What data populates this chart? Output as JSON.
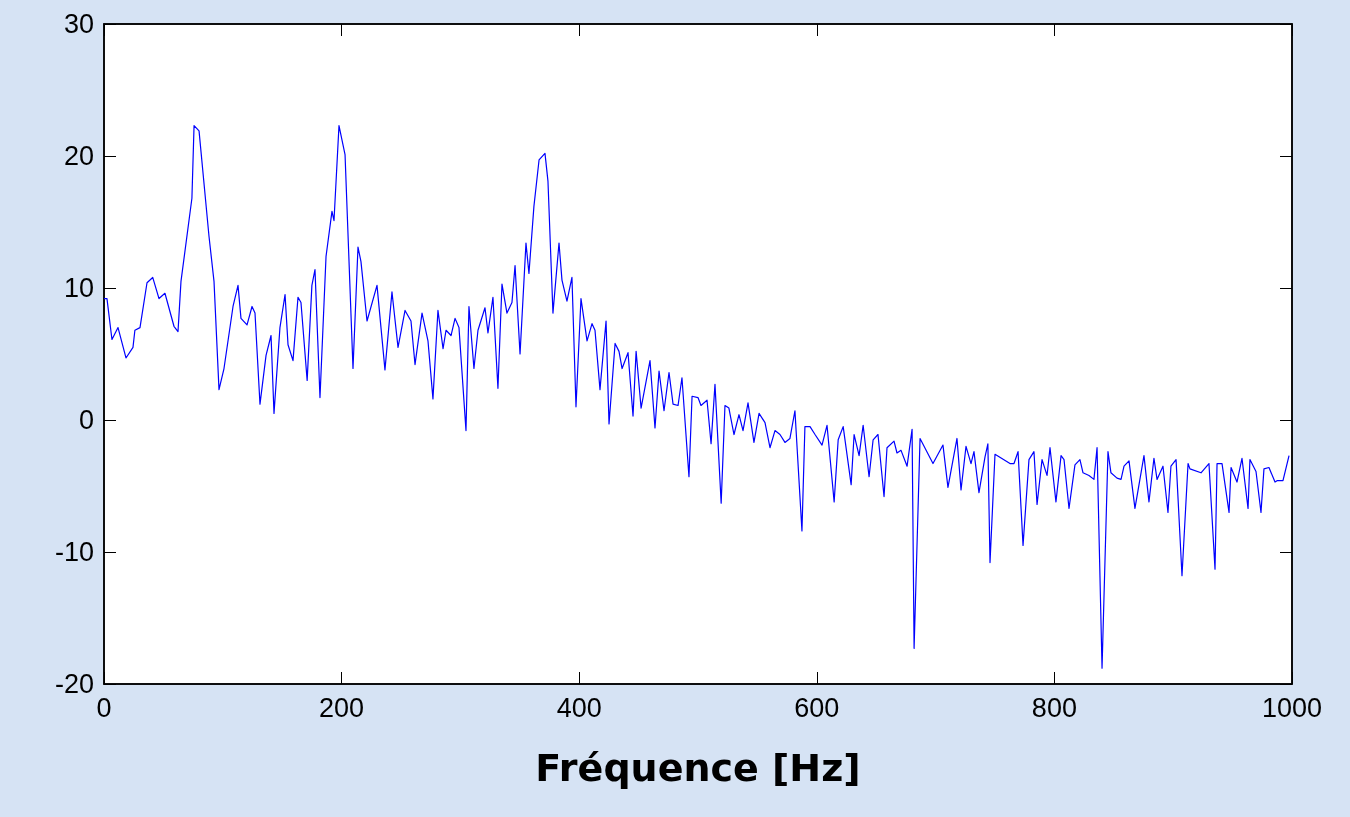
{
  "chart_data": {
    "type": "line",
    "xlabel": "Fréquence [Hz]",
    "xlim": [
      0,
      1000
    ],
    "ylim": [
      -20,
      30
    ],
    "xticks": [
      0,
      200,
      400,
      600,
      800,
      1000
    ],
    "yticks": [
      -20,
      -10,
      0,
      10,
      20,
      30
    ],
    "grid": false,
    "marker": "none",
    "line_style": "solid",
    "series": [
      {
        "color": "#0000ff",
        "x": [
          0,
          2.5,
          6.7,
          11.8,
          18.5,
          24.4,
          26,
          30.3,
          36.2,
          41,
          46.3,
          51.3,
          58.9,
          62.3,
          64.8,
          74,
          75.8,
          80,
          88.4,
          92.6,
          96.8,
          101,
          108.6,
          112.8,
          115.3,
          120.4,
          124.6,
          127.1,
          131.3,
          136.4,
          140.6,
          143.1,
          148.1,
          152.4,
          154.9,
          159.1,
          163.3,
          165.8,
          171,
          175,
          177.6,
          181.8,
          186.9,
          191.9,
          193.6,
          197.8,
          202.9,
          209.6,
          213.8,
          216.3,
          221.4,
          229.8,
          236.5,
          242.4,
          247.5,
          253.4,
          258.4,
          261.8,
          267.7,
          272.7,
          276.9,
          281.1,
          285.4,
          287.9,
          292.1,
          295.5,
          298.8,
          304.7,
          307.2,
          311.4,
          314.8,
          320.7,
          323.2,
          327.4,
          331.6,
          335,
          339.2,
          343.4,
          346,
          350.2,
          355.2,
          357.7,
          361.9,
          366.2,
          371.2,
          373.7,
          377.9,
          383,
          385.5,
          389.7,
          393.9,
          397.3,
          401.5,
          406.6,
          410.8,
          413.3,
          417.5,
          422.6,
          425.1,
          430.2,
          433.5,
          436.1,
          441.1,
          445.3,
          447.9,
          452.1,
          459.6,
          463.8,
          467.2,
          471.4,
          475.6,
          479,
          483.2,
          486.5,
          492.4,
          495,
          500,
          502.5,
          507.6,
          511,
          514.3,
          519.5,
          522.7,
          526,
          530.3,
          534.5,
          537.9,
          542.1,
          547.1,
          551.4,
          556.4,
          560.6,
          564.8,
          569,
          573.2,
          577.4,
          581.6,
          587.5,
          590,
          594.3,
          598.5,
          604.4,
          608.6,
          614.6,
          618,
          622.2,
          628.9,
          631.4,
          635.6,
          639,
          644,
          647.4,
          651.5,
          656.6,
          659.1,
          665,
          667.5,
          670.9,
          676,
          680.2,
          681.9,
          686.9,
          697.8,
          706.2,
          710.4,
          718,
          721.4,
          725.6,
          729.8,
          732.3,
          736.5,
          741.6,
          744,
          745.8,
          750,
          762.6,
          766,
          769.4,
          773.6,
          778.6,
          782.8,
          785.4,
          789.6,
          793.8,
          796.3,
          801.3,
          805.6,
          808.1,
          812.3,
          817.3,
          821.5,
          824.1,
          829.1,
          833.3,
          835.9,
          840.1,
          845.1,
          847.6,
          852.7,
          856.1,
          858.6,
          862.8,
          867.8,
          875.4,
          879.6,
          883.8,
          886.4,
          891.4,
          895.6,
          898.1,
          902.4,
          907.4,
          912.5,
          914.1,
          923.4,
          930.1,
          935.2,
          936.9,
          941.1,
          947,
          948.7,
          953.7,
          957.9,
          963,
          964.6,
          969.7,
          973.9,
          976.4,
          980.6,
          985.7,
          987.4,
          992.4,
          997.5
        ],
        "values": [
          9.2,
          9.2,
          6.1,
          7.0,
          4.7,
          5.5,
          6.8,
          7.0,
          10.4,
          10.8,
          9.2,
          9.6,
          7.1,
          6.7,
          10.5,
          16.8,
          22.3,
          21.9,
          13.9,
          10.5,
          2.3,
          3.9,
          8.6,
          10.2,
          7.7,
          7.2,
          8.6,
          8.1,
          1.2,
          4.9,
          6.4,
          0.5,
          7.0,
          9.5,
          5.7,
          4.5,
          9.3,
          8.9,
          3.0,
          10.2,
          11.4,
          1.7,
          12.4,
          15.8,
          15.1,
          22.3,
          20.1,
          3.9,
          13.1,
          12.0,
          7.5,
          10.2,
          3.8,
          9.7,
          5.5,
          8.3,
          7.5,
          4.2,
          8.1,
          6.0,
          1.6,
          8.3,
          5.4,
          6.8,
          6.4,
          7.7,
          7.0,
          -0.8,
          8.6,
          3.9,
          6.8,
          8.5,
          6.6,
          9.3,
          2.4,
          10.3,
          8.1,
          8.9,
          11.7,
          5.0,
          13.4,
          11.1,
          16.2,
          19.7,
          20.2,
          18.1,
          8.1,
          13.4,
          10.6,
          9.0,
          10.8,
          1.0,
          9.2,
          6.0,
          7.3,
          6.8,
          2.3,
          7.5,
          -0.3,
          5.8,
          5.2,
          3.9,
          5.1,
          0.3,
          5.2,
          0.9,
          4.5,
          -0.6,
          3.7,
          0.7,
          3.6,
          1.2,
          1.1,
          3.2,
          -4.3,
          1.8,
          1.7,
          1.1,
          1.5,
          -1.8,
          2.7,
          -6.3,
          1.1,
          0.9,
          -1.1,
          0.4,
          -0.8,
          1.3,
          -1.7,
          0.5,
          -0.2,
          -2.1,
          -0.8,
          -1.1,
          -1.7,
          -1.4,
          0.7,
          -8.4,
          -0.5,
          -0.5,
          -1.1,
          -1.9,
          -0.4,
          -6.2,
          -1.5,
          -0.5,
          -4.9,
          -1.1,
          -2.7,
          -0.4,
          -4.3,
          -1.5,
          -1.1,
          -5.8,
          -2.1,
          -1.6,
          -2.5,
          -2.3,
          -3.5,
          -0.7,
          -17.3,
          -1.4,
          -3.3,
          -1.9,
          -5.1,
          -1.4,
          -5.3,
          -2.0,
          -3.3,
          -2.4,
          -5.5,
          -2.8,
          -1.8,
          -10.8,
          -2.6,
          -3.3,
          -3.3,
          -2.4,
          -9.5,
          -3.0,
          -2.4,
          -6.4,
          -3.0,
          -4.2,
          -2.1,
          -6.2,
          -2.7,
          -3.0,
          -6.7,
          -3.4,
          -3.0,
          -4.0,
          -4.2,
          -4.5,
          -2.1,
          -18.8,
          -2.4,
          -4.0,
          -4.4,
          -4.5,
          -3.5,
          -3.1,
          -6.7,
          -2.7,
          -6.2,
          -2.9,
          -4.5,
          -3.5,
          -7.0,
          -3.5,
          -3.0,
          -11.8,
          -3.3,
          -3.7,
          -4.0,
          -3.3,
          -11.3,
          -3.3,
          -3.3,
          -7.0,
          -3.6,
          -4.7,
          -2.9,
          -6.7,
          -3.0,
          -3.9,
          -7.0,
          -3.7,
          -3.6,
          -4.7,
          -4.6,
          -4.6,
          -2.7
        ]
      }
    ]
  }
}
